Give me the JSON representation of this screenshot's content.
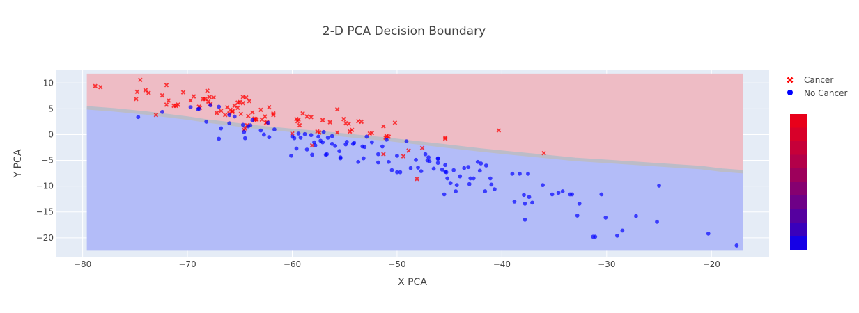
{
  "chart_data": {
    "type": "scatter",
    "title": "2-D PCA Decision Boundary",
    "xlabel": "X PCA",
    "ylabel": "Y PCA",
    "xlim": [
      -82.5,
      -14.5
    ],
    "ylim": [
      -23.8,
      12.6
    ],
    "x_ticks": [
      -80,
      -70,
      -60,
      -50,
      -40,
      -30,
      -20
    ],
    "y_ticks": [
      -20,
      -15,
      -10,
      -5,
      0,
      5,
      10
    ],
    "x_tick_labels": [
      "−80",
      "−70",
      "−60",
      "−50",
      "−40",
      "−30",
      "−20"
    ],
    "y_tick_labels": [
      "−20",
      "−15",
      "−10",
      "−5",
      "0",
      "5",
      "10"
    ],
    "grid": true,
    "legend_position": "top-right",
    "region": {
      "x_range": [
        -79.6,
        -17.0
      ],
      "y_range": [
        -22.5,
        11.8
      ],
      "boundary_x": [
        -79.6,
        -77,
        -74,
        -72,
        -70,
        -68,
        -66,
        -64,
        -62,
        -60,
        -57,
        -54,
        -51,
        -48,
        -45,
        -42,
        -39,
        -36,
        -33,
        -30,
        -27,
        -24,
        -21,
        -19,
        -17
      ],
      "boundary_y": [
        5.2,
        4.8,
        4.2,
        3.7,
        3.2,
        2.6,
        2.1,
        1.6,
        1.2,
        0.8,
        0.3,
        -0.3,
        -0.9,
        -1.6,
        -2.3,
        -3.0,
        -3.6,
        -4.2,
        -4.8,
        -5.2,
        -5.6,
        -6.0,
        -6.4,
        -6.9,
        -7.2
      ],
      "upper_label": "Cancer",
      "lower_label": "No Cancer",
      "upper_color": "#eebcc5",
      "lower_color": "#b3bcf8",
      "boundary_color": "#bcbcc8"
    },
    "series": [
      {
        "name": "Cancer",
        "marker": "x",
        "color": "#ff0000",
        "x": [
          -78.8,
          -78.3,
          -74.5,
          -74.8,
          -74.0,
          -73.7,
          -74.9,
          -72.4,
          -72.0,
          -71.8,
          -71.1,
          -70.9,
          -70.4,
          -69.7,
          -69.4,
          -68.9,
          -68.5,
          -68.1,
          -68.0,
          -67.8,
          -67.5,
          -67.2,
          -66.8,
          -66.2,
          -65.9,
          -65.5,
          -65.2,
          -65.0,
          -64.7,
          -64.4,
          -64.1,
          -63.8,
          -63.4,
          -63.0,
          -62.6,
          -62.2,
          -61.8,
          -68.8,
          -68.3,
          -67.9,
          -66.4,
          -65.7,
          -64.9,
          -64.2,
          -63.6,
          -62.9,
          -62.4,
          -61.8,
          -66.0,
          -64.7,
          -63.5,
          -73.0,
          -72.0,
          -71.3,
          -65.2,
          -65.7,
          -64.5,
          -63.6,
          -62.5,
          -59.4,
          -59.3,
          -59.6,
          -59.0,
          -58.6,
          -58.2,
          -57.6,
          -57.1,
          -56.4,
          -55.7,
          -55.1,
          -54.9,
          -54.5,
          -53.7,
          -53.4,
          -52.4,
          -51.3,
          -51.0,
          -50.8,
          -50.2,
          -49.4,
          -48.9,
          -45.4,
          -47.6,
          -45.4,
          -48.1,
          -51.3,
          -40.3,
          -36.0,
          -60.0,
          -59.5,
          -58.1,
          -55.7,
          -54.3,
          -52.6,
          -51.1,
          -57.4,
          -54.6,
          -64.3,
          -64.6
        ],
        "y": [
          9.4,
          9.2,
          10.6,
          8.3,
          8.6,
          8.1,
          6.9,
          7.6,
          9.6,
          6.6,
          5.6,
          5.8,
          8.2,
          6.6,
          7.4,
          5.4,
          6.9,
          8.5,
          6.4,
          5.9,
          7.2,
          4.2,
          4.6,
          5.3,
          4.8,
          5.6,
          5.2,
          6.3,
          6.1,
          7.2,
          6.5,
          4.3,
          2.9,
          4.8,
          3.5,
          5.3,
          3.8,
          5.2,
          6.9,
          7.3,
          3.8,
          4.4,
          4.0,
          3.6,
          3.1,
          2.9,
          2.4,
          4.1,
          4.1,
          7.3,
          3.0,
          3.8,
          5.8,
          5.6,
          6.2,
          4.6,
          1.2,
          2.9,
          2.3,
          2.9,
          1.8,
          3.0,
          4.1,
          3.5,
          3.4,
          0.6,
          2.8,
          2.4,
          4.9,
          3.0,
          2.2,
          0.6,
          2.6,
          2.5,
          0.3,
          1.6,
          -0.3,
          -0.4,
          2.3,
          -4.2,
          -3.1,
          -0.8,
          -2.6,
          -0.6,
          -8.6,
          -3.8,
          0.8,
          -3.6,
          0.2,
          2.6,
          -2.1,
          0.4,
          0.9,
          0.2,
          -0.6,
          0.4,
          2.1,
          1.8,
          0.9
        ]
      },
      {
        "name": "No Cancer",
        "marker": "circle",
        "color": "#0000ff",
        "x": [
          -74.7,
          -72.4,
          -69.7,
          -68.9,
          -68.2,
          -67.8,
          -67.0,
          -66.8,
          -66.0,
          -65.5,
          -64.7,
          -64.5,
          -64.0,
          -63.8,
          -63.0,
          -62.7,
          -62.2,
          -61.7,
          -69.0,
          -64.6,
          -67.0,
          -66.0,
          -64.2,
          -62.3,
          -60.1,
          -59.8,
          -59.6,
          -59.4,
          -59.2,
          -58.6,
          -58.2,
          -57.9,
          -57.5,
          -57.0,
          -56.7,
          -56.2,
          -55.9,
          -55.4,
          -54.8,
          -54.2,
          -53.7,
          -53.2,
          -52.9,
          -52.4,
          -51.8,
          -51.4,
          -51.0,
          -60.0,
          -58.8,
          -57.3,
          -54.9,
          -53.1,
          -50.8,
          -50.5,
          -50.0,
          -49.7,
          -48.7,
          -48.2,
          -47.7,
          -47.3,
          -47.0,
          -46.5,
          -46.1,
          -45.7,
          -45.4,
          -45.2,
          -44.9,
          -44.4,
          -44.0,
          -43.6,
          -43.1,
          -42.7,
          -42.3,
          -42.0,
          -41.5,
          -41.1,
          -40.7,
          -46.9,
          -46.1,
          -45.5,
          -44.3,
          -43.0,
          -41.6,
          -38.8,
          -38.3,
          -37.9,
          -37.5,
          -37.1,
          -36.1,
          -35.2,
          -34.6,
          -34.2,
          -33.3,
          -32.8,
          -32.6,
          -31.1,
          -30.5,
          -30.1,
          -29.0,
          -28.5,
          -27.2,
          -25.2,
          -25.0,
          -20.3,
          -17.6,
          -57.8,
          -57.1,
          -56.6,
          -55.5,
          -54.1,
          -53.3,
          -50.0,
          -48.0,
          -47.1,
          -45.3,
          -44.6,
          -43.2,
          -42.1,
          -41.0,
          -39.0,
          -37.8,
          -37.4,
          -33.5,
          -31.3,
          -58.1,
          -56.8,
          -49.1,
          -46.1,
          -45.4,
          -37.8,
          -51.8,
          -55.4,
          -56.2
        ],
        "y": [
          3.4,
          4.4,
          5.3,
          5.0,
          2.5,
          5.7,
          -0.8,
          1.2,
          2.2,
          3.5,
          1.9,
          -0.7,
          1.8,
          2.8,
          0.8,
          0.0,
          -0.5,
          1.0,
          4.9,
          0.5,
          5.4,
          3.8,
          1.6,
          2.3,
          -4.1,
          -0.7,
          -2.7,
          0.2,
          -0.6,
          -2.9,
          -0.1,
          -1.5,
          -0.4,
          0.5,
          -3.8,
          -0.3,
          -2.2,
          -4.6,
          -1.4,
          -1.8,
          -5.3,
          -4.6,
          -0.4,
          -1.5,
          -3.8,
          -2.3,
          -1.0,
          -0.4,
          0.1,
          -1.2,
          -1.9,
          -2.4,
          -5.3,
          -6.9,
          -4.1,
          -7.3,
          -6.5,
          -4.9,
          -7.1,
          -3.8,
          -4.4,
          -6.6,
          -4.7,
          -6.8,
          -7.2,
          -8.5,
          -9.4,
          -11.0,
          -8.1,
          -6.5,
          -9.6,
          -8.5,
          -5.3,
          -5.6,
          -6.0,
          -8.5,
          -10.6,
          -5.2,
          -4.6,
          -11.6,
          -9.8,
          -8.5,
          -11.0,
          -13.0,
          -7.6,
          -11.7,
          -7.6,
          -13.2,
          -9.8,
          -11.6,
          -11.3,
          -11.0,
          -11.6,
          -15.7,
          -13.4,
          -19.8,
          -11.6,
          -16.1,
          -19.6,
          -18.6,
          -15.8,
          -16.9,
          -9.9,
          -19.2,
          -21.5,
          -2.1,
          -1.5,
          -0.6,
          -3.2,
          -1.6,
          -2.3,
          -7.3,
          -6.4,
          -5.0,
          -7.3,
          -6.9,
          -6.3,
          -7.0,
          -9.7,
          -7.6,
          -13.4,
          -12.1,
          -11.6,
          -19.8,
          -3.9,
          -3.9,
          -1.3,
          -5.5,
          -5.9,
          -16.5,
          -5.4,
          -4.4,
          -1.8
        ]
      }
    ],
    "colorbar": {
      "bands": [
        "#e8001a",
        "#d80029",
        "#c60039",
        "#b30049",
        "#9d005b",
        "#860070",
        "#6e0087",
        "#55009f",
        "#3a00bb",
        "#1500e6"
      ]
    }
  }
}
